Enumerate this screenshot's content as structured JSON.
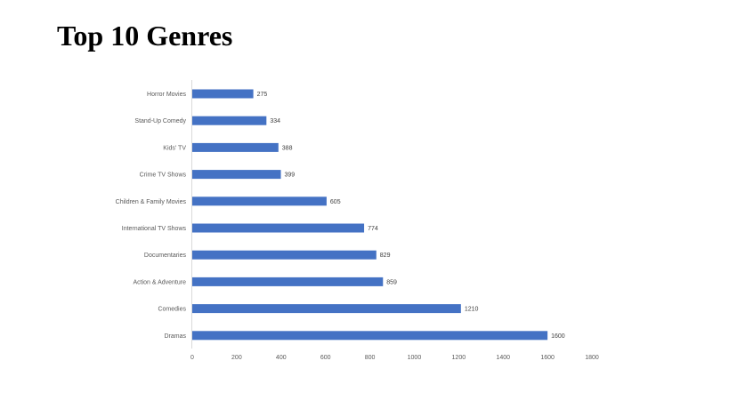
{
  "slide": {
    "title": "Top 10 Genres"
  },
  "chart_data": {
    "type": "bar",
    "orientation": "horizontal",
    "title": "Top 10 Genres",
    "categories": [
      "Horror Movies",
      "Stand-Up Comedy",
      "Kids' TV",
      "Crime TV Shows",
      "Children & Family Movies",
      "International TV Shows",
      "Documentaries",
      "Action & Adventure",
      "Comedies",
      "Dramas"
    ],
    "values": [
      275,
      334,
      388,
      399,
      605,
      774,
      829,
      859,
      1210,
      1600
    ],
    "xlim": [
      0,
      1800
    ],
    "x_ticks": [
      0,
      200,
      400,
      600,
      800,
      1000,
      1200,
      1400,
      1600,
      1800
    ],
    "bar_color": "#4472C4",
    "data_labels": true,
    "grid": false,
    "legend": "none"
  }
}
